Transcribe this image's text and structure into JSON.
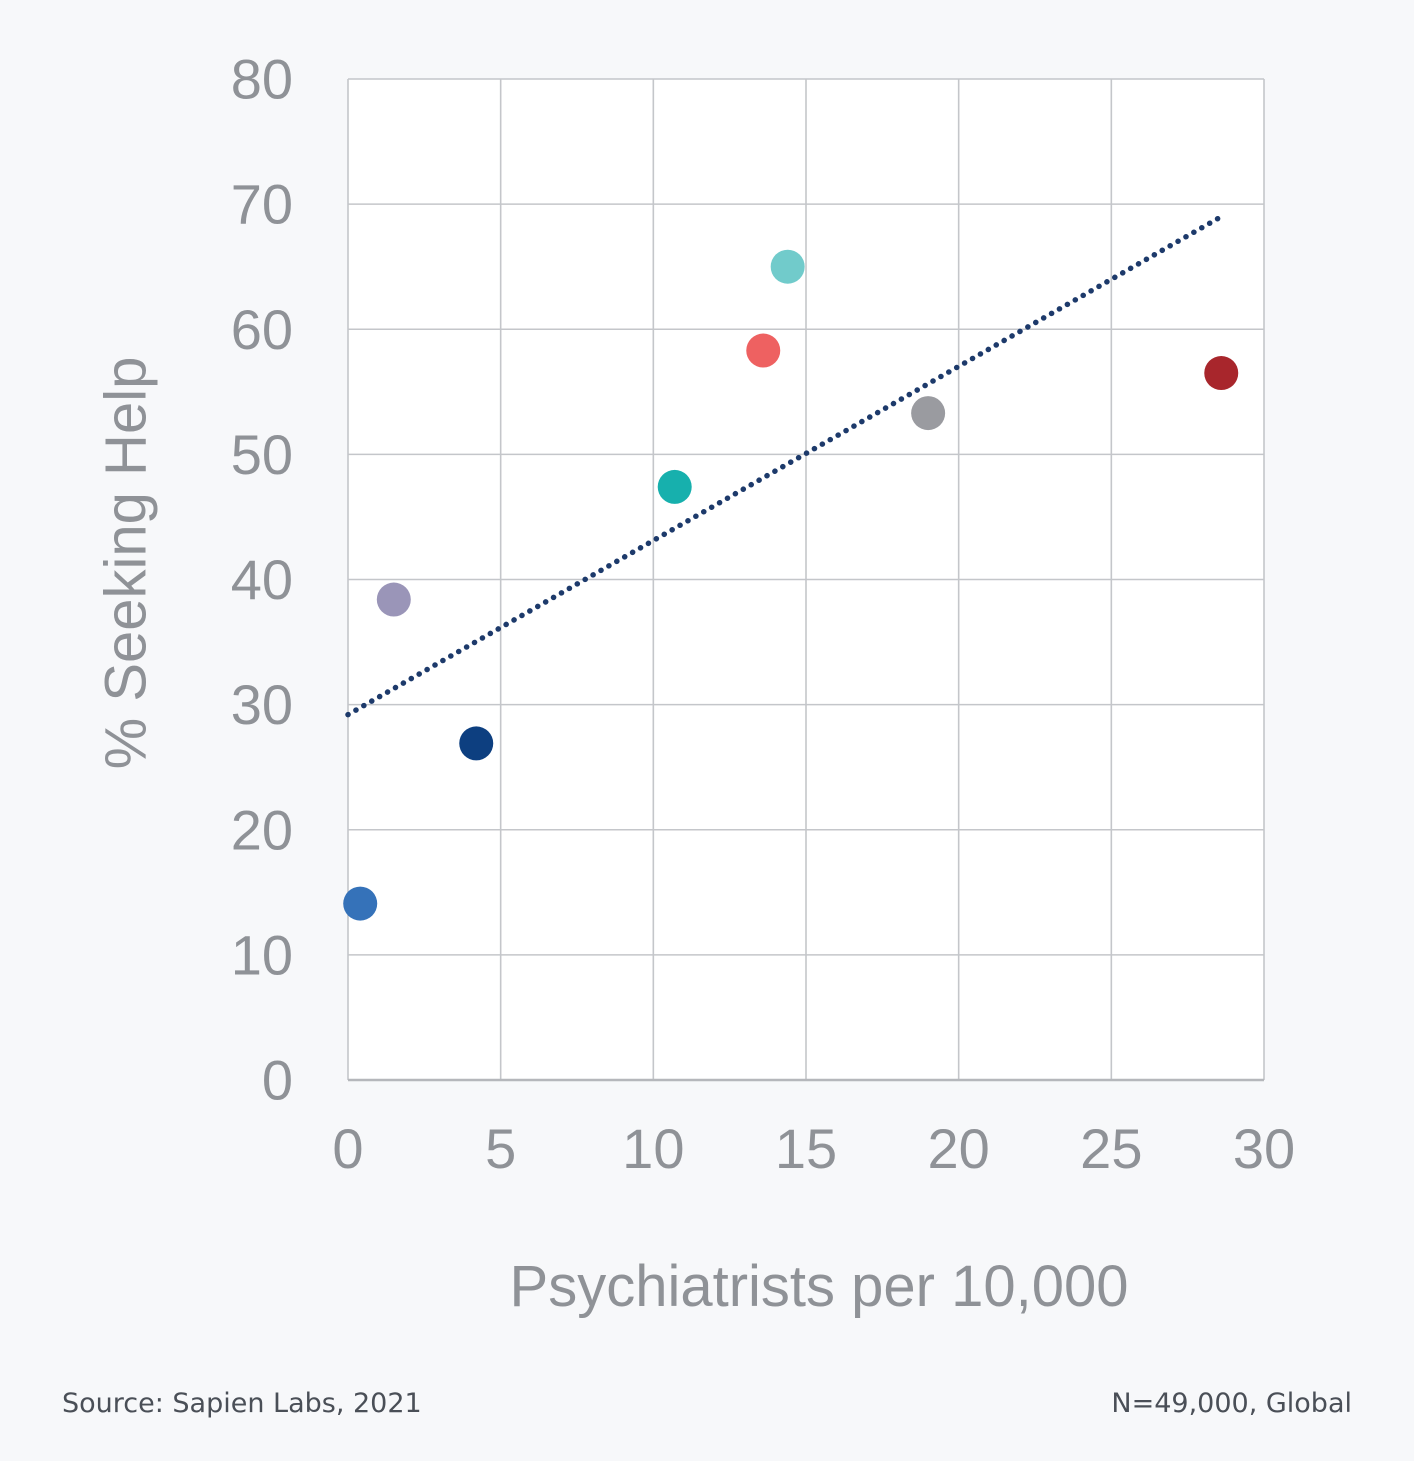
{
  "chart_data": {
    "type": "scatter",
    "xlabel": "Psychiatrists per 10,000",
    "ylabel": "% Seeking Help",
    "xlim": [
      0,
      30
    ],
    "ylim": [
      0,
      80
    ],
    "x_ticks": [
      "0",
      "5",
      "10",
      "15",
      "20",
      "25",
      "30"
    ],
    "y_ticks": [
      "0",
      "10",
      "20",
      "30",
      "40",
      "50",
      "60",
      "70",
      "80"
    ],
    "grid": true,
    "legend": "none",
    "points": [
      {
        "x": 0.4,
        "y": 14.1,
        "color": "#3572b9"
      },
      {
        "x": 1.5,
        "y": 38.4,
        "color": "#9a95b8"
      },
      {
        "x": 4.2,
        "y": 26.9,
        "color": "#0d3f80"
      },
      {
        "x": 10.7,
        "y": 47.4,
        "color": "#17b0ad"
      },
      {
        "x": 13.6,
        "y": 58.3,
        "color": "#ee6161"
      },
      {
        "x": 14.4,
        "y": 65.0,
        "color": "#71cbcb"
      },
      {
        "x": 19.0,
        "y": 53.3,
        "color": "#9a9ba0"
      },
      {
        "x": 28.6,
        "y": 56.5,
        "color": "#a8262c"
      }
    ],
    "trendline": {
      "style": "dotted",
      "color": "#1d3a6b",
      "x": [
        0,
        28.6
      ],
      "y": [
        29.2,
        69.0
      ]
    }
  },
  "footer": {
    "source": "Source: Sapien Labs, 2021",
    "sample": "N=49,000, Global"
  }
}
